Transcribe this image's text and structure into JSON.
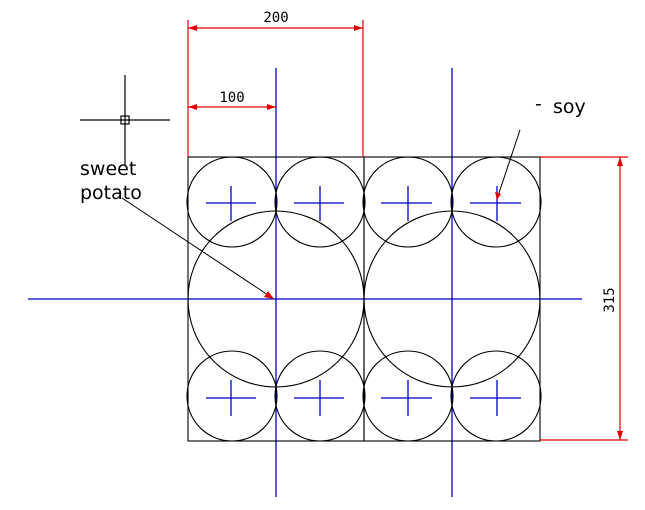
{
  "colors": {
    "outline": "#000000",
    "centerline": "#0000cc",
    "dimension": "#e00000",
    "background": "#ffffff"
  },
  "dimensions": {
    "width_total": "200",
    "width_half": "100",
    "height_total": "315"
  },
  "labels": {
    "sweet_potato_line1": "sweet",
    "sweet_potato_line2": "potato",
    "soy": "soy",
    "soy_prefix": "-"
  },
  "cursor_icon": "crosshair-cursor-icon"
}
